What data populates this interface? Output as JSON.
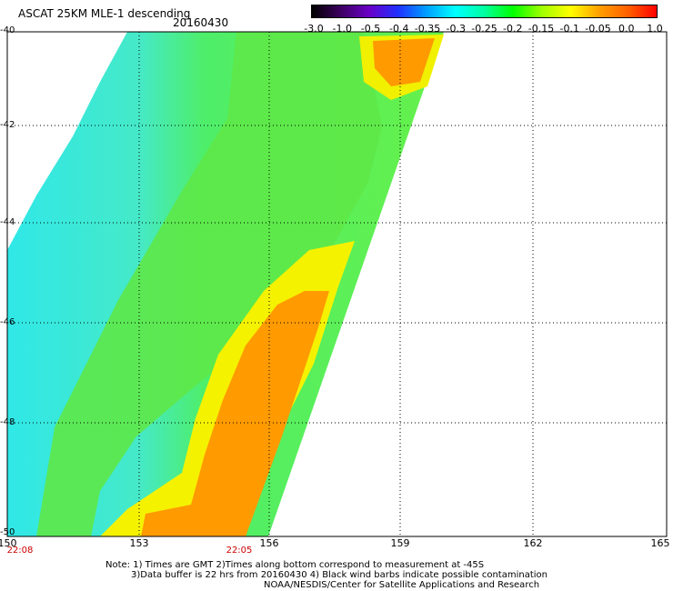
{
  "header": {
    "title": "ASCAT 25KM MLE-1 descending",
    "date": "20160430"
  },
  "colorbar": {
    "colors": [
      "#000000",
      "#3c0060",
      "#6a00c8",
      "#2030ff",
      "#00a0ff",
      "#00ffff",
      "#00ffa0",
      "#00ff00",
      "#a0ff00",
      "#ffff00",
      "#ffa000",
      "#ff6000",
      "#ff0000"
    ],
    "tick_labels": [
      "-3.0",
      "-1.0",
      "-0.5",
      "-0.4",
      "-0.35",
      "-0.3",
      "-0.25",
      "-0.2",
      "-0.15",
      "-0.1",
      "-0.05",
      "0.0",
      "1.0"
    ]
  },
  "axes": {
    "lat_labels": [
      "-40",
      "-42",
      "-44",
      "-46",
      "-48",
      "-50"
    ],
    "lon_labels": [
      "150",
      "153",
      "156",
      "159",
      "162",
      "165"
    ],
    "lon_range": [
      150,
      165
    ],
    "lat_range": [
      -40,
      -50
    ]
  },
  "times": [
    "22:08",
    "22:05"
  ],
  "notes": [
    "Note: 1) Times are GMT 2)Times along bottom correspond to measurement at -45S",
    "3)Data buffer is 22 hrs from 20160430 4) Black wind barbs indicate possible contamination",
    "NOAA/NESDIS/Center for Satellite Applications and Research"
  ],
  "swath": {
    "colors": {
      "cyan": "#33f0e8",
      "green": "#5ff03a",
      "yellow": "#f5f500",
      "orange": "#ff9a00"
    }
  }
}
